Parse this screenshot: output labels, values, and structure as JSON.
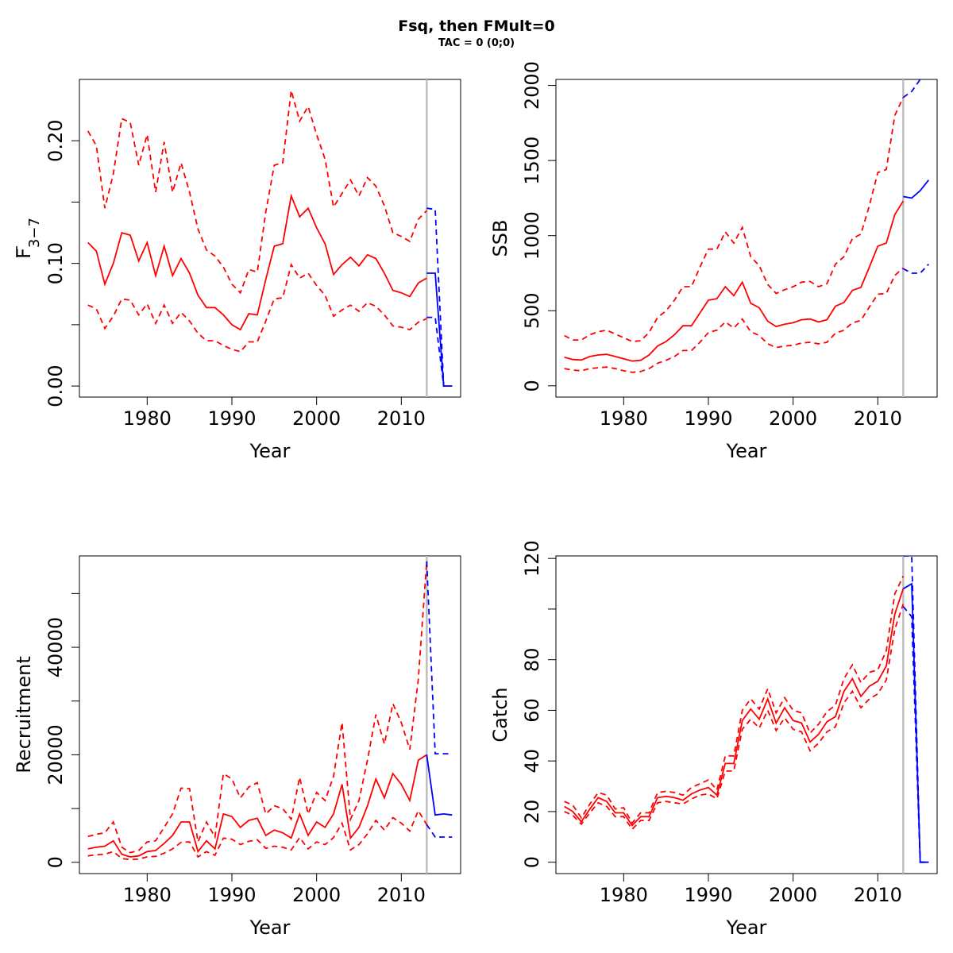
{
  "title": "Fsq, then FMult=0",
  "subtitle": "TAC = 0 (0;0)",
  "colors": {
    "historic": "#ff0000",
    "projection": "#0000ff",
    "current_year_line": "#bebebe",
    "axis": "#000000"
  },
  "chart_data": [
    {
      "type": "line",
      "panel": "top-left",
      "ylabel": "F",
      "ylabel_bar": true,
      "ylabel_sub": "3−7",
      "xlabel": "Year",
      "xlim": [
        1972,
        2017
      ],
      "ylim": [
        -0.009,
        0.25
      ],
      "x_ticks": [
        1980,
        1990,
        2000,
        2010
      ],
      "y_ticks": [
        0,
        0.05,
        0.1,
        0.15,
        0.2
      ],
      "y_tick_labels": [
        "0.00",
        "",
        "0.10",
        "",
        "0.20"
      ],
      "current_year": 2013,
      "historic": {
        "x": [
          1973,
          1974,
          1975,
          1976,
          1977,
          1978,
          1979,
          1980,
          1981,
          1982,
          1983,
          1984,
          1985,
          1986,
          1987,
          1988,
          1989,
          1990,
          1991,
          1992,
          1993,
          1994,
          1995,
          1996,
          1997,
          1998,
          1999,
          2000,
          2001,
          2002,
          2003,
          2004,
          2005,
          2006,
          2007,
          2008,
          2009,
          2010,
          2011,
          2012,
          2013
        ],
        "median": [
          0.117,
          0.11,
          0.083,
          0.1,
          0.125,
          0.123,
          0.102,
          0.117,
          0.09,
          0.114,
          0.09,
          0.104,
          0.092,
          0.074,
          0.064,
          0.064,
          0.058,
          0.05,
          0.046,
          0.059,
          0.058,
          0.087,
          0.114,
          0.116,
          0.155,
          0.138,
          0.145,
          0.129,
          0.116,
          0.091,
          0.099,
          0.105,
          0.098,
          0.107,
          0.104,
          0.092,
          0.078,
          0.076,
          0.073,
          0.084,
          0.088
        ],
        "upper": [
          0.208,
          0.196,
          0.145,
          0.173,
          0.218,
          0.215,
          0.18,
          0.205,
          0.158,
          0.199,
          0.158,
          0.182,
          0.158,
          0.128,
          0.111,
          0.106,
          0.097,
          0.083,
          0.076,
          0.095,
          0.093,
          0.142,
          0.18,
          0.182,
          0.241,
          0.216,
          0.228,
          0.205,
          0.185,
          0.146,
          0.157,
          0.168,
          0.155,
          0.17,
          0.163,
          0.147,
          0.125,
          0.122,
          0.118,
          0.136,
          0.143
        ],
        "lower": [
          0.066,
          0.063,
          0.047,
          0.057,
          0.071,
          0.07,
          0.058,
          0.067,
          0.051,
          0.066,
          0.051,
          0.06,
          0.053,
          0.043,
          0.037,
          0.037,
          0.033,
          0.03,
          0.028,
          0.036,
          0.036,
          0.053,
          0.071,
          0.072,
          0.099,
          0.088,
          0.092,
          0.082,
          0.074,
          0.057,
          0.062,
          0.066,
          0.061,
          0.068,
          0.065,
          0.058,
          0.049,
          0.048,
          0.046,
          0.052,
          0.055
        ]
      },
      "projection": {
        "x": [
          2013,
          2014,
          2015,
          2016
        ],
        "median": [
          0.092,
          0.092,
          0.0,
          0.0
        ],
        "upper": [
          0.145,
          0.144,
          0.0,
          0.0
        ],
        "lower": [
          0.056,
          0.056,
          0.0,
          0.0
        ]
      }
    },
    {
      "type": "line",
      "panel": "top-right",
      "ylabel": "SSB",
      "xlabel": "Year",
      "xlim": [
        1972,
        2017
      ],
      "ylim": [
        -75,
        2040
      ],
      "x_ticks": [
        1980,
        1990,
        2000,
        2010
      ],
      "y_ticks": [
        0,
        500,
        1000,
        1500,
        2000
      ],
      "y_tick_labels": [
        "0",
        "500",
        "1000",
        "1500",
        "2000"
      ],
      "current_year": 2013,
      "historic": {
        "x": [
          1973,
          1974,
          1975,
          1976,
          1977,
          1978,
          1979,
          1980,
          1981,
          1982,
          1983,
          1984,
          1985,
          1986,
          1987,
          1988,
          1989,
          1990,
          1991,
          1992,
          1993,
          1994,
          1995,
          1996,
          1997,
          1998,
          1999,
          2000,
          2001,
          2002,
          2003,
          2004,
          2005,
          2006,
          2007,
          2008,
          2009,
          2010,
          2011,
          2012,
          2013
        ],
        "median": [
          190,
          175,
          172,
          195,
          205,
          210,
          195,
          180,
          165,
          170,
          205,
          265,
          295,
          340,
          400,
          400,
          485,
          570,
          580,
          660,
          600,
          690,
          550,
          520,
          430,
          395,
          410,
          420,
          440,
          445,
          425,
          440,
          530,
          555,
          635,
          655,
          790,
          930,
          950,
          1140,
          1230
        ],
        "upper": [
          335,
          305,
          305,
          340,
          360,
          370,
          345,
          320,
          295,
          300,
          355,
          455,
          500,
          570,
          660,
          660,
          790,
          910,
          910,
          1025,
          950,
          1055,
          860,
          800,
          675,
          615,
          640,
          660,
          690,
          695,
          660,
          680,
          810,
          860,
          980,
          1010,
          1200,
          1420,
          1440,
          1800,
          1920
        ],
        "lower": [
          115,
          105,
          100,
          115,
          120,
          125,
          115,
          100,
          90,
          95,
          115,
          150,
          170,
          195,
          235,
          235,
          290,
          355,
          370,
          425,
          385,
          445,
          360,
          335,
          280,
          255,
          265,
          270,
          285,
          290,
          280,
          290,
          350,
          370,
          420,
          435,
          525,
          610,
          615,
          735,
          785
        ]
      },
      "projection": {
        "x": [
          2013,
          2014,
          2015,
          2016
        ],
        "median": [
          1260,
          1250,
          1300,
          1370
        ],
        "upper": [
          1920,
          1960,
          2040,
          2100
        ],
        "lower": [
          780,
          750,
          750,
          810
        ]
      }
    },
    {
      "type": "line",
      "panel": "bottom-left",
      "ylabel": "Recruitment",
      "xlabel": "Year",
      "xlim": [
        1972,
        2017
      ],
      "ylim": [
        -2100,
        57000
      ],
      "x_ticks": [
        1980,
        1990,
        2000,
        2010
      ],
      "y_ticks": [
        0,
        10000,
        20000,
        30000,
        40000,
        50000
      ],
      "y_tick_labels": [
        "0",
        "",
        "20000",
        "",
        "40000",
        ""
      ],
      "current_year": 2013,
      "historic": {
        "x": [
          1973,
          1974,
          1975,
          1976,
          1977,
          1978,
          1979,
          1980,
          1981,
          1982,
          1983,
          1984,
          1985,
          1986,
          1987,
          1988,
          1989,
          1990,
          1991,
          1992,
          1993,
          1994,
          1995,
          1996,
          1997,
          1998,
          1999,
          2000,
          2001,
          2002,
          2003,
          2004,
          2005,
          2006,
          2007,
          2008,
          2009,
          2010,
          2011,
          2012,
          2013
        ],
        "median": [
          2500,
          2800,
          3000,
          4000,
          1500,
          1000,
          1200,
          2000,
          2200,
          3500,
          5000,
          7500,
          7500,
          2000,
          4000,
          2500,
          9000,
          8500,
          6500,
          7800,
          8200,
          5000,
          6000,
          5500,
          4500,
          9000,
          5000,
          7500,
          6500,
          9000,
          14500,
          4500,
          6500,
          10500,
          15500,
          12000,
          16500,
          14500,
          11500,
          19000,
          20000
        ],
        "upper": [
          4800,
          5200,
          5500,
          7500,
          2800,
          1800,
          2200,
          3800,
          4000,
          6500,
          9000,
          13800,
          13700,
          3800,
          7500,
          4700,
          16500,
          15500,
          12000,
          14000,
          14800,
          9000,
          10500,
          10000,
          8000,
          15800,
          9000,
          13000,
          11500,
          16000,
          26000,
          8000,
          11500,
          19000,
          27500,
          22000,
          29500,
          26000,
          21000,
          34000,
          56000
        ],
        "lower": [
          1200,
          1400,
          1500,
          2000,
          700,
          500,
          600,
          1000,
          1100,
          1700,
          2500,
          3700,
          3800,
          1000,
          2000,
          1300,
          4500,
          4300,
          3300,
          3900,
          4200,
          2600,
          3000,
          2800,
          2300,
          4600,
          2500,
          3800,
          3300,
          4600,
          7300,
          2300,
          3300,
          5300,
          7800,
          6000,
          8300,
          7300,
          5800,
          9600,
          7000
        ]
      },
      "projection": {
        "x": [
          2013,
          2014,
          2015,
          2016
        ],
        "median": [
          20000,
          8800,
          9000,
          8800
        ],
        "upper": [
          56000,
          20200,
          20200,
          20200
        ],
        "lower": [
          7000,
          4700,
          4700,
          4700
        ]
      }
    },
    {
      "type": "line",
      "panel": "bottom-right",
      "ylabel": "Catch",
      "xlabel": "Year",
      "xlim": [
        1972,
        2017
      ],
      "ylim": [
        -4.5,
        121
      ],
      "x_ticks": [
        1980,
        1990,
        2000,
        2010
      ],
      "y_ticks": [
        0,
        20,
        40,
        60,
        80,
        100,
        120
      ],
      "y_tick_labels": [
        "0",
        "20",
        "40",
        "60",
        "80",
        "",
        "120"
      ],
      "current_year": 2013,
      "historic": {
        "x": [
          1973,
          1974,
          1975,
          1976,
          1977,
          1978,
          1979,
          1980,
          1981,
          1982,
          1983,
          1984,
          1985,
          1986,
          1987,
          1988,
          1989,
          1990,
          1991,
          1992,
          1993,
          1994,
          1995,
          1996,
          1997,
          1998,
          1999,
          2000,
          2001,
          2002,
          2003,
          2004,
          2005,
          2006,
          2007,
          2008,
          2009,
          2010,
          2011,
          2012,
          2013
        ],
        "median": [
          22,
          20,
          16,
          21,
          25.5,
          24,
          19.5,
          19.5,
          14.5,
          18,
          18,
          25.5,
          26,
          25.5,
          24.5,
          27,
          28.5,
          29.5,
          26.5,
          39,
          39,
          56,
          60.5,
          56.5,
          64.5,
          55,
          61,
          56,
          55,
          47.5,
          50.5,
          55.5,
          57.5,
          67.5,
          72.5,
          65.5,
          69.5,
          71.5,
          77.5,
          98,
          108
        ],
        "upper": [
          24,
          22.5,
          17.5,
          23,
          27.5,
          26.5,
          21,
          21.5,
          15.5,
          19.5,
          19.5,
          27.5,
          28,
          27.5,
          26.5,
          29.5,
          31,
          32.5,
          28.5,
          42,
          42,
          60,
          64.5,
          60.5,
          68.5,
          59,
          65,
          60,
          59,
          51,
          54.5,
          59.5,
          62,
          72.5,
          78,
          71,
          75,
          76,
          83.5,
          106,
          113
        ],
        "lower": [
          20,
          18.5,
          15,
          19.5,
          23.5,
          22,
          18,
          18,
          13,
          16.5,
          16.5,
          23.5,
          24,
          23.5,
          23,
          25,
          26.5,
          27,
          25,
          36,
          36,
          52.5,
          56.5,
          53,
          60,
          52,
          57,
          52.5,
          51.5,
          44,
          47,
          51.5,
          53.5,
          63,
          67.5,
          61,
          64.5,
          66.5,
          72,
          92,
          102
        ]
      },
      "projection": {
        "x": [
          2013,
          2014,
          2015,
          2016
        ],
        "median": [
          108,
          110,
          0,
          0
        ],
        "upper": [
          121,
          121,
          0,
          0
        ],
        "lower": [
          101,
          97,
          0,
          0
        ]
      }
    }
  ]
}
